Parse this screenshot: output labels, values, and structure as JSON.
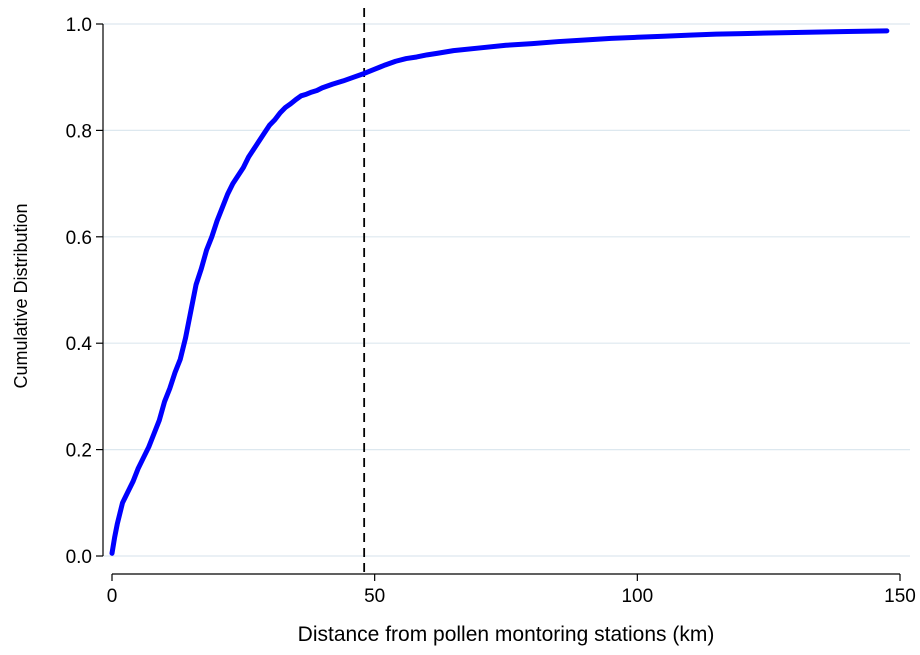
{
  "chart_data": {
    "type": "line",
    "title": "",
    "xlabel": "Distance from pollen montoring stations (km)",
    "ylabel": "Cumulative Distribution",
    "xlim": [
      0,
      150
    ],
    "ylim": [
      0,
      1
    ],
    "x_ticks": [
      {
        "value": 0,
        "label": "0"
      },
      {
        "value": 50,
        "label": "50"
      },
      {
        "value": 100,
        "label": "100"
      },
      {
        "value": 150,
        "label": "150"
      }
    ],
    "y_ticks": [
      {
        "value": 0,
        "label": "0.0"
      },
      {
        "value": 0.2,
        "label": "0.2"
      },
      {
        "value": 0.4,
        "label": "0.4"
      },
      {
        "value": 0.6,
        "label": "0.6"
      },
      {
        "value": 0.8,
        "label": "0.8"
      },
      {
        "value": 1,
        "label": "1.0"
      }
    ],
    "grid": "horizontal",
    "colors": {
      "series": "#0000ff",
      "grid": "#dde8ef",
      "axis": "#000000",
      "reference_line": "#000000"
    },
    "series": [
      {
        "x": [
          0,
          0.5,
          1,
          1.5,
          2,
          3,
          4,
          5,
          6,
          7,
          8,
          9,
          10,
          11,
          12,
          13,
          14,
          15,
          16,
          17,
          18,
          19,
          20,
          21,
          22,
          23,
          24,
          25,
          26,
          27,
          28,
          29,
          30,
          31,
          32,
          33,
          34,
          35,
          36,
          37,
          38,
          39,
          40,
          42,
          44,
          46,
          48,
          50,
          52,
          54,
          56,
          58,
          60,
          62,
          65,
          70,
          75,
          80,
          85,
          90,
          95,
          100,
          105,
          110,
          115,
          120,
          125,
          130,
          135,
          140,
          147.5
        ],
        "y": [
          0.005,
          0.035,
          0.06,
          0.08,
          0.1,
          0.12,
          0.14,
          0.165,
          0.185,
          0.205,
          0.23,
          0.255,
          0.29,
          0.315,
          0.345,
          0.37,
          0.41,
          0.46,
          0.51,
          0.54,
          0.575,
          0.6,
          0.63,
          0.655,
          0.68,
          0.7,
          0.715,
          0.73,
          0.75,
          0.765,
          0.78,
          0.795,
          0.81,
          0.82,
          0.833,
          0.843,
          0.85,
          0.858,
          0.865,
          0.868,
          0.872,
          0.875,
          0.88,
          0.887,
          0.893,
          0.9,
          0.907,
          0.915,
          0.923,
          0.93,
          0.935,
          0.938,
          0.942,
          0.945,
          0.95,
          0.955,
          0.96,
          0.963,
          0.967,
          0.97,
          0.973,
          0.975,
          0.977,
          0.979,
          0.981,
          0.982,
          0.983,
          0.984,
          0.985,
          0.986,
          0.987
        ]
      }
    ],
    "reference_lines": [
      {
        "axis": "x",
        "value": 48,
        "style": "dashed"
      }
    ]
  }
}
